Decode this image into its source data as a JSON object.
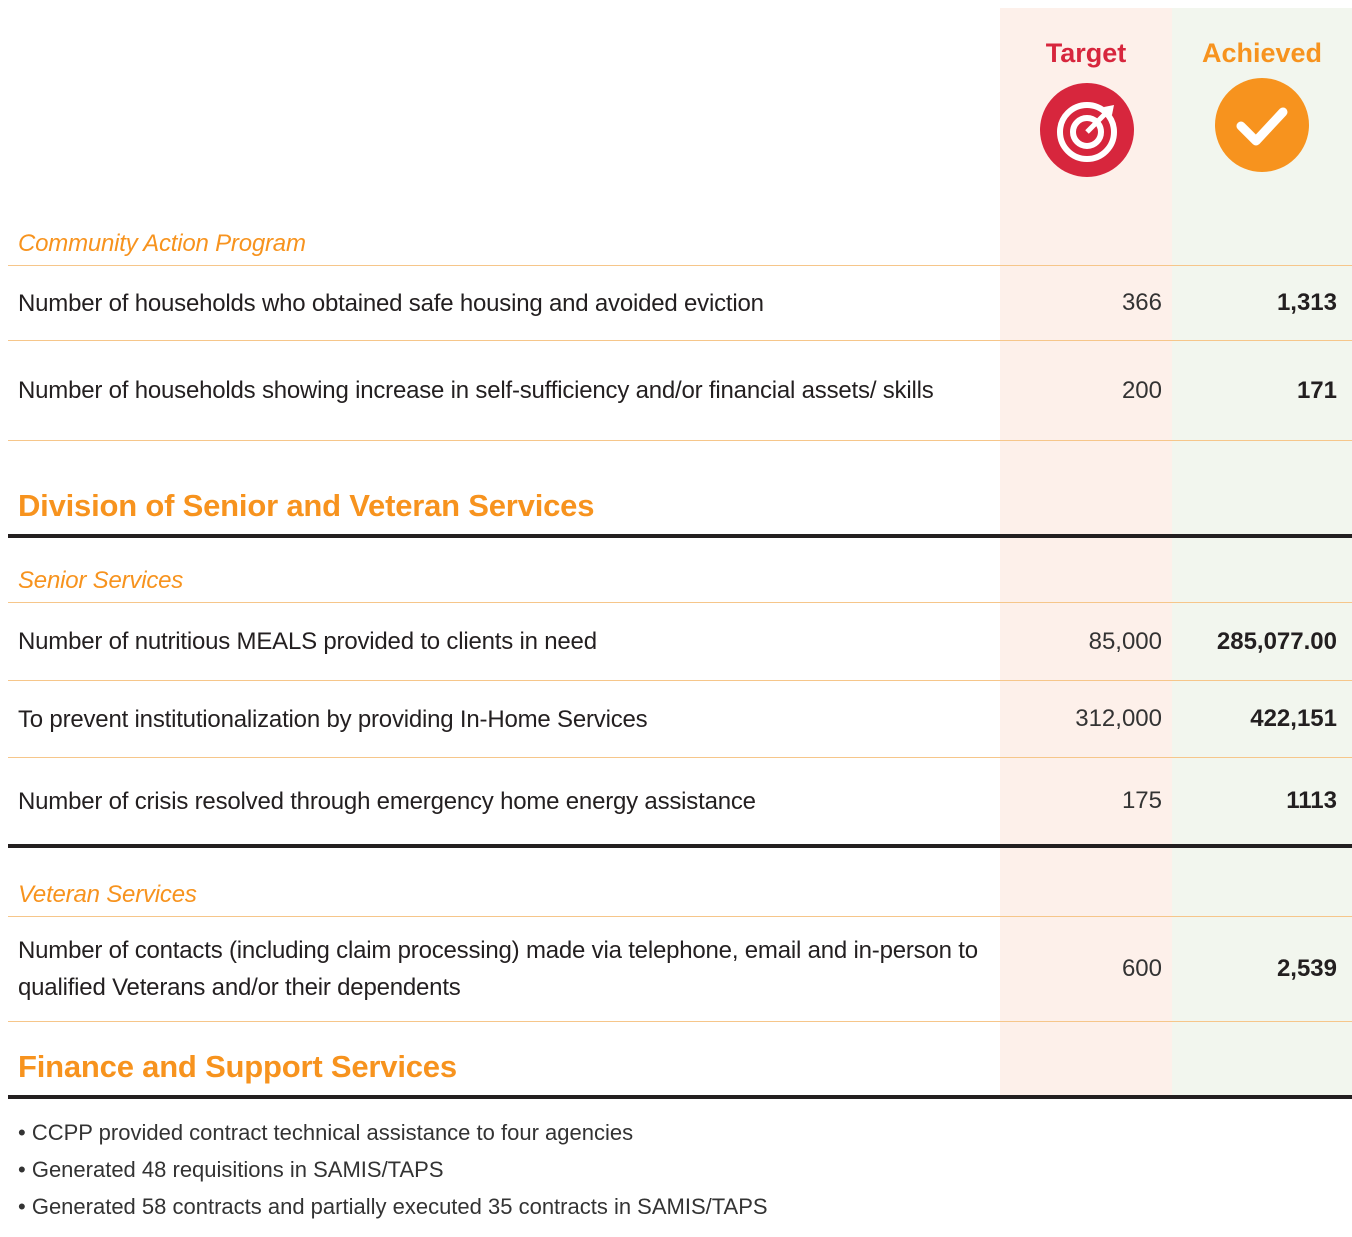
{
  "header": {
    "target": "Target",
    "achieved": "Achieved"
  },
  "sections": [
    {
      "subsections": [
        {
          "title": "Community Action Program",
          "rows": [
            {
              "label": "Number of households who obtained safe housing and avoided eviction",
              "target": "366",
              "achieved": "1,313"
            },
            {
              "label": "Number of households showing increase in self-sufficiency and/or financial assets/ skills",
              "target": "200",
              "achieved": "171"
            }
          ]
        }
      ]
    },
    {
      "title": "Division of Senior and Veteran Services",
      "subsections": [
        {
          "title": "Senior Services",
          "rows": [
            {
              "label": "Number of nutritious MEALS provided to clients in need",
              "target": "85,000",
              "achieved": "285,077.00"
            },
            {
              "label": "To prevent institutionalization by providing In-Home Services",
              "target": "312,000",
              "achieved": "422,151"
            },
            {
              "label": "Number of crisis resolved through emergency home energy assistance",
              "target": "175",
              "achieved": "1113"
            }
          ]
        },
        {
          "title": "Veteran Services",
          "rows": [
            {
              "label": "Number of contacts (including claim processing) made via telephone, email and in-person to qualified Veterans and/or their dependents",
              "target": "600",
              "achieved": "2,539"
            }
          ]
        }
      ]
    },
    {
      "title": "Finance and Support Services",
      "items": [
        "CCPP provided contract technical assistance to four agencies",
        "Generated 48 requisitions in SAMIS/TAPS",
        "Generated 58 contracts and partially executed 35 contracts in SAMIS/TAPS"
      ]
    }
  ]
}
